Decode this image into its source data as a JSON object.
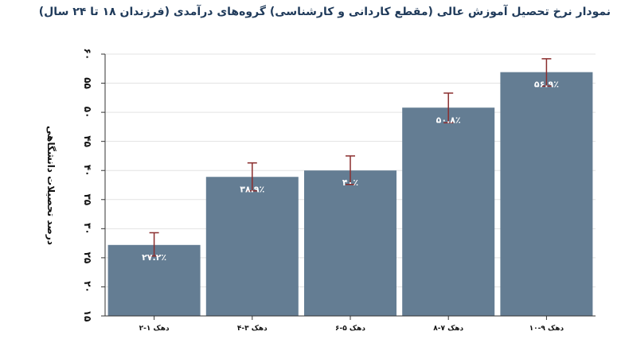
{
  "chart_data": {
    "type": "bar",
    "title": "نمودار نرخ تحصیل آموزش عالی (مقطع کاردانی و کارشناسی) گروه‌های درآمدی (فرزندان ۱۸ تا ۲۴ سال)",
    "ylabel": "درصد تحصیلات دانشگاهی",
    "xlabel": "",
    "ylim": [
      15,
      60
    ],
    "yticks": [
      15,
      20,
      25,
      30,
      35,
      40,
      45,
      50,
      55,
      60
    ],
    "ytick_labels": [
      "۱۵",
      "۲۰",
      "۲۵",
      "۳۰",
      "۳۵",
      "۴۰",
      "۴۵",
      "۵۰",
      "۵۵",
      "۶۰"
    ],
    "grid": true,
    "categories": [
      "دهک ۱-۲",
      "دهک ۳-۴",
      "دهک ۵-۶",
      "دهک ۷-۸",
      "دهک ۹-۱۰"
    ],
    "values": [
      27.2,
      38.9,
      40,
      50.8,
      56.9
    ],
    "data_labels": [
      "۲۷.۲٪",
      "۳۸.۹٪",
      "۴۰٪",
      "۵۰.۸٪",
      "۵۶.۹٪"
    ],
    "error_low": [
      25.3,
      36.5,
      37.6,
      48.2,
      54.5
    ],
    "error_high": [
      29.3,
      41.3,
      42.5,
      53.3,
      59.2
    ],
    "bar_color": "#647d93",
    "error_color": "#8b2e2e"
  }
}
